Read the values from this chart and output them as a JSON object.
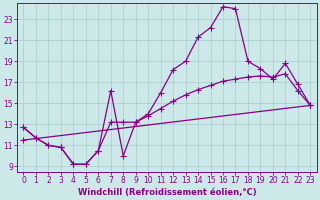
{
  "xlabel": "Windchill (Refroidissement éolien,°C)",
  "bg_color": "#cce8e8",
  "line_color": "#880088",
  "grid_color": "#aacccc",
  "xlim": [
    -0.5,
    23.5
  ],
  "ylim": [
    8.5,
    24.5
  ],
  "xticks": [
    0,
    1,
    2,
    3,
    4,
    5,
    6,
    7,
    8,
    9,
    10,
    11,
    12,
    13,
    14,
    15,
    16,
    17,
    18,
    19,
    20,
    21,
    22,
    23
  ],
  "yticks": [
    9,
    11,
    13,
    15,
    17,
    19,
    21,
    23
  ],
  "series1_x": [
    0,
    1,
    2,
    3,
    4,
    5,
    6,
    7,
    8,
    9,
    10,
    11,
    12,
    13,
    14,
    15,
    16,
    17,
    18,
    19,
    20,
    21,
    22,
    23
  ],
  "series1_y": [
    12.7,
    11.7,
    11.0,
    10.8,
    9.2,
    9.2,
    10.5,
    16.2,
    10.0,
    13.2,
    14.0,
    16.0,
    18.2,
    19.0,
    21.3,
    22.2,
    24.2,
    24.0,
    19.0,
    18.3,
    17.3,
    18.8,
    16.8,
    14.8
  ],
  "series2_x": [
    0,
    1,
    2,
    3,
    4,
    5,
    6,
    7,
    8,
    9,
    10,
    11,
    12,
    13,
    14,
    15,
    16,
    17,
    18,
    19,
    20,
    21,
    22,
    23
  ],
  "series2_y": [
    12.7,
    11.7,
    11.0,
    10.8,
    9.2,
    9.2,
    10.5,
    13.2,
    13.2,
    13.2,
    13.8,
    14.5,
    15.2,
    15.8,
    16.3,
    16.7,
    17.1,
    17.3,
    17.5,
    17.6,
    17.5,
    17.8,
    16.2,
    14.8
  ],
  "series3_x": [
    0,
    23
  ],
  "series3_y": [
    11.5,
    14.8
  ],
  "marker": "+",
  "markersize": 4,
  "linewidth": 0.9,
  "tick_fontsize": 5.5,
  "xlabel_fontsize": 6.0
}
